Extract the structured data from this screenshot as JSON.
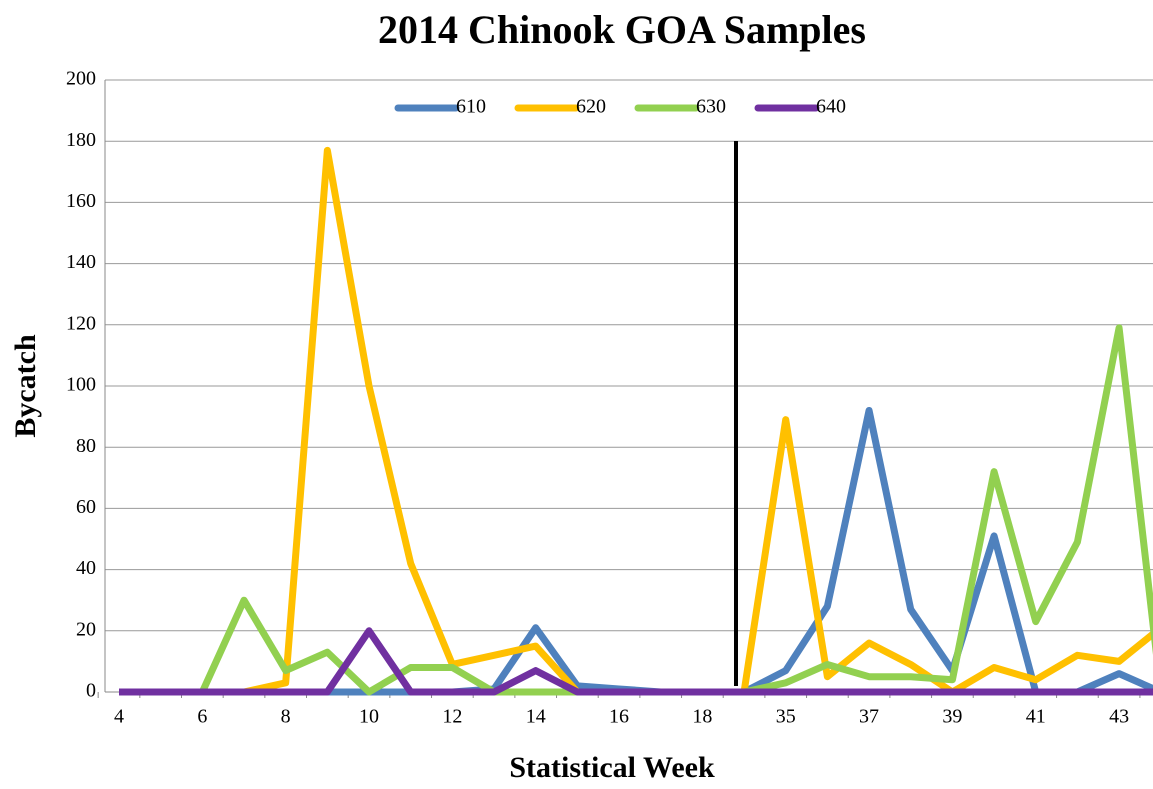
{
  "chart_data": {
    "type": "line",
    "title": "2014 Chinook GOA Samples",
    "x_label": "Statistical Week",
    "y_label": "Bycatch",
    "categories": [
      "4",
      null,
      "6",
      null,
      "8",
      null,
      "10",
      null,
      "12",
      null,
      "14",
      null,
      "16",
      null,
      "18",
      null,
      "35",
      null,
      "37",
      null,
      "39",
      null,
      "41",
      null,
      "43",
      null
    ],
    "series": [
      {
        "name": "610",
        "color": "#4f81bd",
        "values": [
          0,
          0,
          0,
          0,
          0,
          0,
          0,
          0,
          0,
          1,
          21,
          2,
          1,
          0,
          0,
          0,
          7,
          28,
          92,
          27,
          7,
          51,
          0,
          0,
          6,
          0
        ]
      },
      {
        "name": "620",
        "color": "#ffc000",
        "values": [
          0,
          0,
          0,
          0,
          3,
          177,
          100,
          42,
          9,
          12,
          15,
          0,
          0,
          0,
          0,
          0,
          89,
          5,
          16,
          9,
          0,
          8,
          4,
          12,
          10,
          21
        ]
      },
      {
        "name": "630",
        "color": "#92d050",
        "values": [
          0,
          0,
          0,
          30,
          7,
          13,
          0,
          8,
          8,
          0,
          0,
          0,
          0,
          0,
          0,
          0,
          3,
          9,
          5,
          5,
          4,
          72,
          23,
          49,
          119,
          0
        ]
      },
      {
        "name": "640",
        "color": "#7030a0",
        "values": [
          0,
          0,
          0,
          0,
          0,
          0,
          20,
          0,
          0,
          0,
          7,
          0,
          0,
          0,
          0,
          0,
          0,
          0,
          0,
          0,
          0,
          0,
          0,
          0,
          0,
          0
        ]
      }
    ],
    "ylim": [
      0,
      200
    ],
    "yticks": [
      0,
      20,
      40,
      60,
      80,
      100,
      120,
      140,
      160,
      180,
      200
    ],
    "grid": true,
    "legend": "top"
  }
}
